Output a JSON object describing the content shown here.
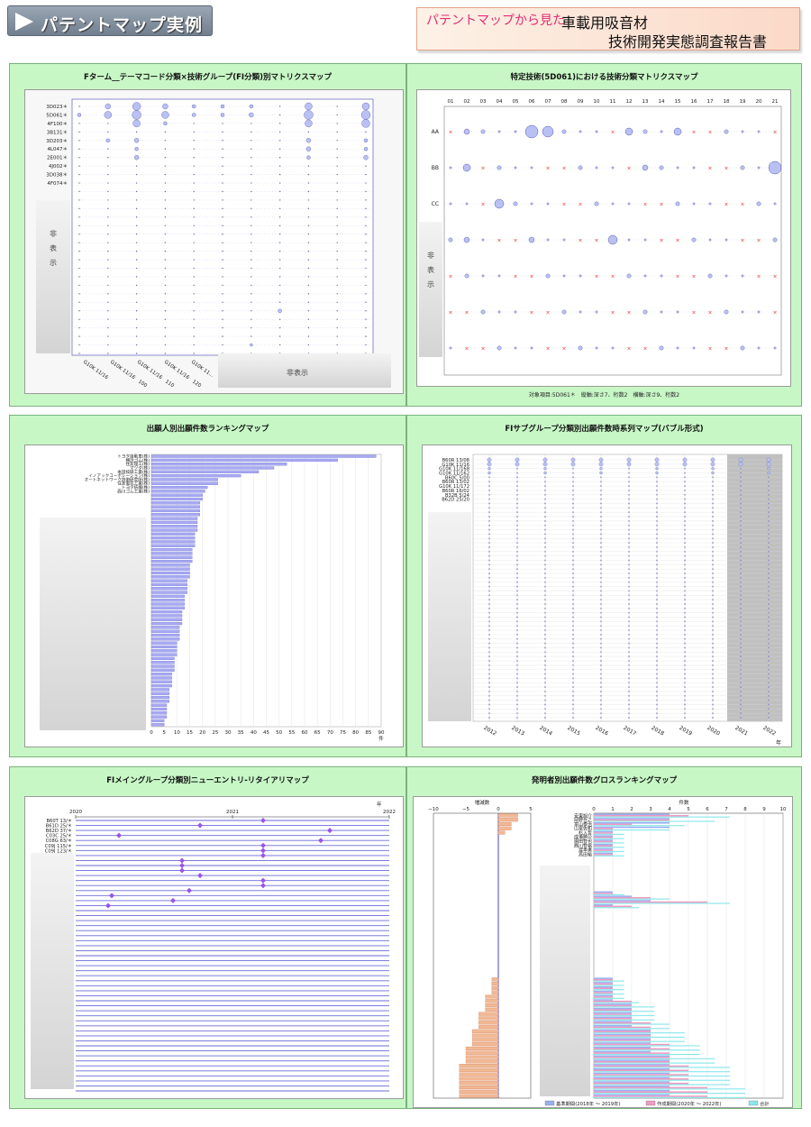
{
  "header": {
    "title": "パテントマップ実例",
    "subtitle_pink": "パテントマップから見た",
    "subtitle_black1": "車載用吸音材",
    "subtitle_black2": "技術開発実態調査報告書"
  },
  "hidden_label": "非表示",
  "hidden_chars": [
    "非",
    "表",
    "示"
  ],
  "colors": {
    "bubble": "#b9c1f4",
    "bar": "#a7aaf2",
    "diamond": "#9a55e8",
    "orange": "#f1b894",
    "cyan": "#8be8ec",
    "pink": "#ee9bc1",
    "blue": "#9ab0f0",
    "cross": "#e83030"
  },
  "chart1": {
    "title": "Fターム__テーマコード分類×技術グループ(FI分類)別マトリクスマップ",
    "rows": [
      "3D023＊",
      "5D061＊",
      "4F100＊",
      "3B131＊",
      "3D203＊",
      "4L047＊",
      "2E001＊",
      "4J002＊",
      "3D038＊",
      "4F074＊"
    ],
    "cols": [
      "G10K 11/16",
      "G10K 11/16　100",
      "G10K 11/16　110",
      "G10K 11/16　120",
      "G10K 11..."
    ]
  },
  "chart2": {
    "title": "特定技術(5D061)における技術分類マトリクスマップ",
    "cols": [
      "01",
      "02",
      "03",
      "04",
      "05",
      "06",
      "07",
      "08",
      "09",
      "10",
      "11",
      "12",
      "13",
      "14",
      "15",
      "16",
      "17",
      "18",
      "19",
      "20",
      "21"
    ],
    "rows": [
      "AA",
      "BB",
      "CC"
    ],
    "footer": "対象項目:5D061＊　縦軸:深さ7、桁数2　横軸:深さ9、桁数2"
  },
  "chart3": {
    "title": "出願人別出願件数ランキングマップ",
    "names": [
      "トヨタ自動車(株)",
      "横浜ゴム(株)",
      "住友理工(株)",
      "マツダ(株)",
      "本田技研工業(株)",
      "イノアックコーポレーション(株)",
      "オートネットワーク技術研究所(株)",
      "住友電気工業(株)",
      "トヨタ紡織(株)",
      "西川ゴム工業(株)"
    ],
    "values": [
      88,
      73,
      53,
      48,
      42,
      35,
      26,
      26,
      22,
      21
    ],
    "ticks": [
      "0",
      "5",
      "10",
      "15",
      "20",
      "25",
      "30",
      "35",
      "40",
      "45",
      "50",
      "55",
      "60",
      "65",
      "70",
      "75",
      "80",
      "85",
      "90"
    ],
    "unit": "件"
  },
  "chart4": {
    "title": "FIサブグループ分類別出願件数時系列マップ(バブル形式)",
    "rows": [
      "B60R 13/08",
      "G10K 11/16",
      "G10K 11/168",
      "G10K 11/162",
      "B60C 5/00",
      "B60R 13/02",
      "G10K 11/172",
      "B60R 16/02",
      "B32B 5/24",
      "B62D 25/20"
    ],
    "years": [
      "2012",
      "2013",
      "2014",
      "2015",
      "2016",
      "2017",
      "2018",
      "2019",
      "2020",
      "2021",
      "2022"
    ],
    "unit": "年"
  },
  "chart5": {
    "title": "FIメイングループ分類別ニューエントリ-リタイアリマップ",
    "rows": [
      "B60T 13/＊",
      "B61D 25/＊",
      "B62D 37/＊",
      "C03C 25/＊",
      "C08G 63/＊",
      "C09J 115/＊",
      "C09J 123/＊",
      "C09J 133/＊"
    ],
    "years": [
      "2020",
      "2021",
      "2022"
    ],
    "unit": "年"
  },
  "chart6": {
    "title": "発明者別出願件数グロスランキングマップ",
    "left_label": "増減数",
    "right_label": "件数",
    "left_ticks": [
      "−10",
      "−5",
      "0",
      "5"
    ],
    "right_ticks": [
      "0",
      "1",
      "2",
      "3",
      "4",
      "5",
      "6",
      "7",
      "8",
      "9",
      "10"
    ],
    "names": [
      "安東旭介",
      "岡野吾之",
      "富山泰治",
      "山室佐和",
      "杉入哲",
      "成瀬勝公",
      "園田智也",
      "西川智裕",
      "渡本勇",
      "高田裕"
    ],
    "legend": [
      "基準期間(2018年 ～ 2019年)",
      "作成期間(2020年 ～ 2022年)",
      "合計"
    ]
  }
}
